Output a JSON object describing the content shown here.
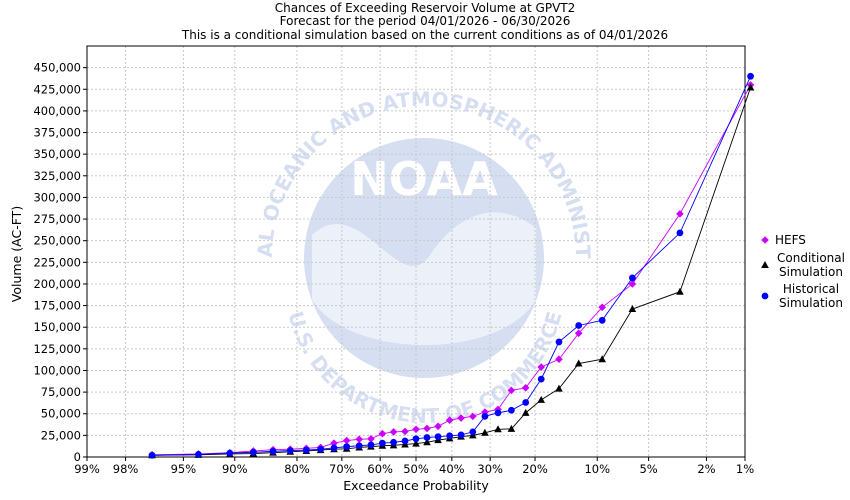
{
  "chart_data": {
    "type": "line",
    "title": [
      "Chances of Exceeding Reservoir Volume at GPVT2",
      "Forecast for the period 04/01/2026 - 06/30/2026",
      "This is a conditional simulation based on the current conditions as of 04/01/2026"
    ],
    "xlabel": "Exceedance Probability",
    "ylabel": "Volume (AC-FT)",
    "x_scale": "normal-probability",
    "x_ticks": [
      {
        "p": 0.99,
        "label": "99%"
      },
      {
        "p": 0.98,
        "label": "98%"
      },
      {
        "p": 0.95,
        "label": "95%"
      },
      {
        "p": 0.9,
        "label": "90%"
      },
      {
        "p": 0.8,
        "label": "80%"
      },
      {
        "p": 0.7,
        "label": "70%"
      },
      {
        "p": 0.6,
        "label": "60%"
      },
      {
        "p": 0.5,
        "label": "50%"
      },
      {
        "p": 0.4,
        "label": "40%"
      },
      {
        "p": 0.3,
        "label": "30%"
      },
      {
        "p": 0.2,
        "label": "20%"
      },
      {
        "p": 0.1,
        "label": "10%"
      },
      {
        "p": 0.05,
        "label": "5%"
      },
      {
        "p": 0.02,
        "label": "2%"
      },
      {
        "p": 0.01,
        "label": "1%"
      }
    ],
    "ylim": [
      0,
      475000
    ],
    "y_ticks": [
      {
        "v": 0,
        "label": "0"
      },
      {
        "v": 25000,
        "label": "25,000"
      },
      {
        "v": 50000,
        "label": "50,000"
      },
      {
        "v": 75000,
        "label": "75,000"
      },
      {
        "v": 100000,
        "label": "100,000"
      },
      {
        "v": 125000,
        "label": "125,000"
      },
      {
        "v": 150000,
        "label": "150,000"
      },
      {
        "v": 175000,
        "label": "175,000"
      },
      {
        "v": 200000,
        "label": "200,000"
      },
      {
        "v": 225000,
        "label": "225,000"
      },
      {
        "v": 250000,
        "label": "250,000"
      },
      {
        "v": 275000,
        "label": "275,000"
      },
      {
        "v": 300000,
        "label": "300,000"
      },
      {
        "v": 325000,
        "label": "325,000"
      },
      {
        "v": 350000,
        "label": "350,000"
      },
      {
        "v": 375000,
        "label": "375,000"
      },
      {
        "v": 400000,
        "label": "400,000"
      },
      {
        "v": 425000,
        "label": "425,000"
      },
      {
        "v": 450000,
        "label": "450,000"
      }
    ],
    "grid": true,
    "legend_position": "right",
    "series": [
      {
        "name": "HEFS",
        "color": "#cc00ff",
        "marker": "diamond",
        "points": [
          {
            "x": 0.969,
            "y": 2500
          },
          {
            "x": 0.938,
            "y": 3500
          },
          {
            "x": 0.906,
            "y": 5000
          },
          {
            "x": 0.875,
            "y": 7000
          },
          {
            "x": 0.844,
            "y": 8500
          },
          {
            "x": 0.813,
            "y": 9000
          },
          {
            "x": 0.781,
            "y": 10000
          },
          {
            "x": 0.75,
            "y": 11000
          },
          {
            "x": 0.719,
            "y": 16000
          },
          {
            "x": 0.688,
            "y": 19000
          },
          {
            "x": 0.656,
            "y": 20500
          },
          {
            "x": 0.625,
            "y": 21000
          },
          {
            "x": 0.594,
            "y": 27000
          },
          {
            "x": 0.563,
            "y": 29000
          },
          {
            "x": 0.531,
            "y": 29500
          },
          {
            "x": 0.5,
            "y": 32000
          },
          {
            "x": 0.469,
            "y": 33000
          },
          {
            "x": 0.438,
            "y": 35500
          },
          {
            "x": 0.406,
            "y": 42500
          },
          {
            "x": 0.375,
            "y": 45000
          },
          {
            "x": 0.344,
            "y": 47000
          },
          {
            "x": 0.313,
            "y": 52000
          },
          {
            "x": 0.281,
            "y": 55000
          },
          {
            "x": 0.25,
            "y": 77000
          },
          {
            "x": 0.219,
            "y": 80000
          },
          {
            "x": 0.188,
            "y": 104000
          },
          {
            "x": 0.156,
            "y": 113000
          },
          {
            "x": 0.125,
            "y": 143000
          },
          {
            "x": 0.094,
            "y": 173000
          },
          {
            "x": 0.063,
            "y": 200000
          },
          {
            "x": 0.031,
            "y": 281000
          },
          {
            "x": 0.009,
            "y": 430000
          }
        ]
      },
      {
        "name": "Conditional Simulation",
        "color": "#000000",
        "marker": "triangle",
        "points": [
          {
            "x": 0.969,
            "y": 2000
          },
          {
            "x": 0.938,
            "y": 2500
          },
          {
            "x": 0.906,
            "y": 3500
          },
          {
            "x": 0.875,
            "y": 4000
          },
          {
            "x": 0.844,
            "y": 5000
          },
          {
            "x": 0.813,
            "y": 6000
          },
          {
            "x": 0.781,
            "y": 7000
          },
          {
            "x": 0.75,
            "y": 8000
          },
          {
            "x": 0.719,
            "y": 9000
          },
          {
            "x": 0.688,
            "y": 9500
          },
          {
            "x": 0.656,
            "y": 11000
          },
          {
            "x": 0.625,
            "y": 12000
          },
          {
            "x": 0.594,
            "y": 13000
          },
          {
            "x": 0.563,
            "y": 13500
          },
          {
            "x": 0.531,
            "y": 14500
          },
          {
            "x": 0.5,
            "y": 15500
          },
          {
            "x": 0.469,
            "y": 17000
          },
          {
            "x": 0.438,
            "y": 19500
          },
          {
            "x": 0.406,
            "y": 21500
          },
          {
            "x": 0.375,
            "y": 23500
          },
          {
            "x": 0.344,
            "y": 25000
          },
          {
            "x": 0.313,
            "y": 28000
          },
          {
            "x": 0.281,
            "y": 32000
          },
          {
            "x": 0.25,
            "y": 32500
          },
          {
            "x": 0.219,
            "y": 51000
          },
          {
            "x": 0.188,
            "y": 66000
          },
          {
            "x": 0.156,
            "y": 79000
          },
          {
            "x": 0.125,
            "y": 108000
          },
          {
            "x": 0.094,
            "y": 113000
          },
          {
            "x": 0.063,
            "y": 171000
          },
          {
            "x": 0.031,
            "y": 191000
          },
          {
            "x": 0.009,
            "y": 427000
          }
        ]
      },
      {
        "name": "Historical Simulation",
        "color": "#0000ff",
        "marker": "circle",
        "points": [
          {
            "x": 0.969,
            "y": 2000
          },
          {
            "x": 0.938,
            "y": 3000
          },
          {
            "x": 0.906,
            "y": 4500
          },
          {
            "x": 0.875,
            "y": 5500
          },
          {
            "x": 0.844,
            "y": 6500
          },
          {
            "x": 0.813,
            "y": 7500
          },
          {
            "x": 0.781,
            "y": 8000
          },
          {
            "x": 0.75,
            "y": 9000
          },
          {
            "x": 0.719,
            "y": 10500
          },
          {
            "x": 0.688,
            "y": 12000
          },
          {
            "x": 0.656,
            "y": 13000
          },
          {
            "x": 0.625,
            "y": 14000
          },
          {
            "x": 0.594,
            "y": 16000
          },
          {
            "x": 0.563,
            "y": 17000
          },
          {
            "x": 0.531,
            "y": 18500
          },
          {
            "x": 0.5,
            "y": 21000
          },
          {
            "x": 0.469,
            "y": 22500
          },
          {
            "x": 0.438,
            "y": 23500
          },
          {
            "x": 0.406,
            "y": 24500
          },
          {
            "x": 0.375,
            "y": 25500
          },
          {
            "x": 0.344,
            "y": 29000
          },
          {
            "x": 0.313,
            "y": 47000
          },
          {
            "x": 0.281,
            "y": 51000
          },
          {
            "x": 0.25,
            "y": 54000
          },
          {
            "x": 0.219,
            "y": 63000
          },
          {
            "x": 0.188,
            "y": 90000
          },
          {
            "x": 0.156,
            "y": 133000
          },
          {
            "x": 0.125,
            "y": 152000
          },
          {
            "x": 0.094,
            "y": 158000
          },
          {
            "x": 0.063,
            "y": 207000
          },
          {
            "x": 0.031,
            "y": 259000
          },
          {
            "x": 0.009,
            "y": 440000
          }
        ]
      }
    ],
    "legend": [
      {
        "series": 0,
        "lines": [
          "HEFS"
        ]
      },
      {
        "series": 1,
        "lines": [
          "Conditional",
          "Simulation"
        ]
      },
      {
        "series": 2,
        "lines": [
          "Historical",
          "Simulation"
        ]
      }
    ],
    "watermark": {
      "logo_text": "NOAA",
      "ring_text": "NATIONAL OCEANIC AND ATMOSPHERIC ADMINISTRATION",
      "ring_bottom_text": "U.S. DEPARTMENT OF COMMERCE"
    }
  }
}
